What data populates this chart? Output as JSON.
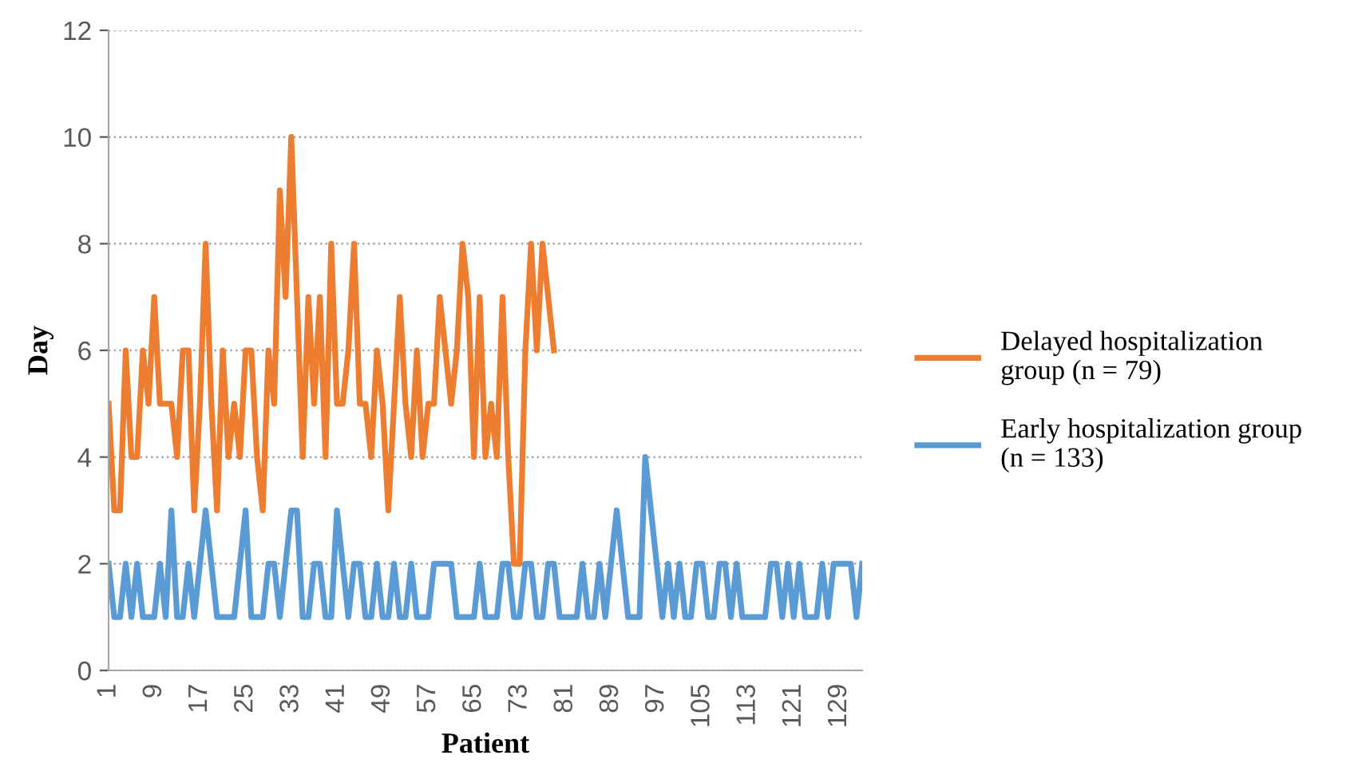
{
  "chart_data": {
    "type": "line",
    "xlabel": "Patient",
    "ylabel": "Day",
    "categories": [
      "1",
      null,
      null,
      null,
      null,
      null,
      null,
      null,
      "9",
      null,
      null,
      null,
      null,
      null,
      null,
      null,
      "17",
      null,
      null,
      null,
      null,
      null,
      null,
      null,
      "25",
      null,
      null,
      null,
      null,
      null,
      null,
      null,
      "33",
      null,
      null,
      null,
      null,
      null,
      null,
      null,
      "41",
      null,
      null,
      null,
      null,
      null,
      null,
      null,
      "49",
      null,
      null,
      null,
      null,
      null,
      null,
      null,
      "57",
      null,
      null,
      null,
      null,
      null,
      null,
      null,
      "65",
      null,
      null,
      null,
      null,
      null,
      null,
      null,
      "73",
      null,
      null,
      null,
      null,
      null,
      null,
      null,
      "81",
      null,
      null,
      null,
      null,
      null,
      null,
      null,
      "89",
      null,
      null,
      null,
      null,
      null,
      null,
      null,
      "97",
      null,
      null,
      null,
      null,
      null,
      null,
      null,
      "105",
      null,
      null,
      null,
      null,
      null,
      null,
      null,
      "113",
      null,
      null,
      null,
      null,
      null,
      null,
      null,
      "121",
      null,
      null,
      null,
      null,
      null,
      null,
      null,
      "129",
      null,
      null,
      null,
      null
    ],
    "series": [
      {
        "name": "Delayed hospitalization\ngroup (n = 79)",
        "color": "#ed7d31",
        "values": [
          5,
          3,
          3,
          6,
          4,
          4,
          6,
          5,
          7,
          5,
          5,
          5,
          4,
          6,
          6,
          3,
          5,
          8,
          5,
          3,
          6,
          4,
          5,
          4,
          6,
          6,
          4,
          3,
          6,
          5,
          9,
          7,
          10,
          7,
          4,
          7,
          5,
          7,
          4,
          8,
          5,
          5,
          6,
          8,
          5,
          5,
          4,
          6,
          5,
          3,
          5,
          7,
          5,
          4,
          6,
          4,
          5,
          5,
          7,
          6,
          5,
          6,
          8,
          7,
          4,
          7,
          4,
          5,
          4,
          7,
          4,
          2,
          2,
          6,
          8,
          6,
          8,
          7,
          6,
          null,
          null,
          null,
          null,
          null,
          null,
          null,
          null,
          null,
          null,
          null,
          null,
          null,
          null,
          null,
          null,
          null,
          null,
          null,
          null,
          null,
          null,
          null,
          null,
          null,
          null,
          null,
          null,
          null,
          null,
          null,
          null,
          null,
          null,
          null,
          null,
          null,
          null,
          null,
          null,
          null,
          null,
          null,
          null,
          null,
          null,
          null,
          null,
          null,
          null,
          null,
          null,
          null,
          null
        ]
      },
      {
        "name": "Early hospitalization group\n(n = 133)",
        "color": "#5b9bd5",
        "values": [
          2,
          1,
          1,
          2,
          1,
          2,
          1,
          1,
          1,
          2,
          1,
          3,
          1,
          1,
          2,
          1,
          2,
          3,
          2,
          1,
          1,
          1,
          1,
          2,
          3,
          1,
          1,
          1,
          2,
          2,
          1,
          2,
          3,
          3,
          1,
          1,
          2,
          2,
          1,
          1,
          3,
          2,
          1,
          2,
          2,
          1,
          1,
          2,
          1,
          1,
          2,
          1,
          1,
          2,
          1,
          1,
          1,
          2,
          2,
          2,
          2,
          1,
          1,
          1,
          1,
          2,
          1,
          1,
          1,
          2,
          2,
          1,
          1,
          2,
          2,
          1,
          1,
          2,
          2,
          1,
          1,
          1,
          1,
          2,
          1,
          1,
          2,
          1,
          2,
          3,
          2,
          1,
          1,
          1,
          4,
          3,
          2,
          1,
          2,
          1,
          2,
          1,
          1,
          2,
          2,
          1,
          1,
          2,
          2,
          1,
          2,
          1,
          1,
          1,
          1,
          1,
          2,
          2,
          1,
          2,
          1,
          2,
          1,
          1,
          1,
          2,
          1,
          2,
          2,
          2,
          2,
          1,
          2
        ]
      }
    ],
    "ylim": [
      0,
      12
    ],
    "yticks": [
      0,
      2,
      4,
      6,
      8,
      10,
      12
    ],
    "grid": "y",
    "legend": "right",
    "marker": "none",
    "line_style": "solid"
  }
}
